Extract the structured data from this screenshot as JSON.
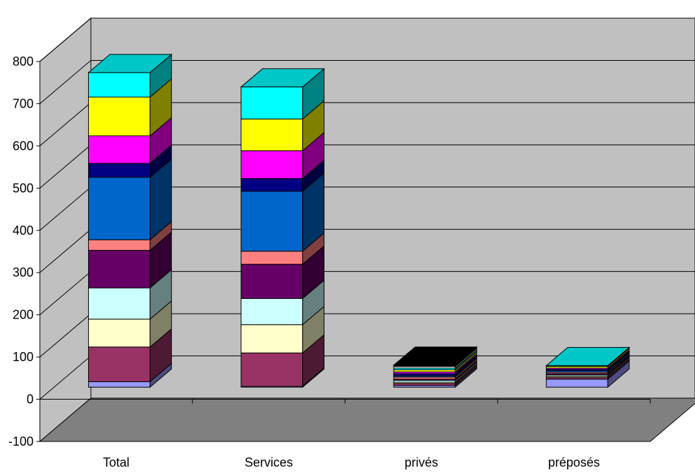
{
  "chart_data": {
    "type": "bar",
    "stacked": true,
    "three_d": true,
    "grid": true,
    "legend": "none",
    "title": "",
    "xlabel": "",
    "ylabel": "",
    "ylim": [
      -100,
      800
    ],
    "yticks": [
      -100,
      0,
      100,
      200,
      300,
      400,
      500,
      600,
      700,
      800
    ],
    "categories": [
      "Total",
      "Services",
      "privés",
      "préposés"
    ],
    "colors": {
      "wall": "#c0c0c0",
      "floor": "#808080",
      "gridline": "#000000"
    },
    "segments": [
      {
        "color": "#9999ff",
        "values": [
          13,
          2,
          4,
          19
        ]
      },
      {
        "color": "#993366",
        "values": [
          82,
          79,
          5,
          4
        ]
      },
      {
        "color": "#ffffcc",
        "values": [
          66,
          67,
          3,
          3
        ]
      },
      {
        "color": "#ccffff",
        "values": [
          74,
          62,
          4,
          3
        ]
      },
      {
        "color": "#660066",
        "values": [
          89,
          81,
          3,
          3
        ]
      },
      {
        "color": "#ff8080",
        "values": [
          25,
          31,
          5,
          3
        ]
      },
      {
        "color": "#0066cc",
        "values": [
          148,
          142,
          3,
          4
        ]
      },
      {
        "color": "#000080",
        "values": [
          33,
          30,
          5,
          3
        ]
      },
      {
        "color": "#ff00ff",
        "values": [
          65,
          66,
          4,
          3
        ]
      },
      {
        "color": "#ffff00",
        "values": [
          92,
          75,
          5,
          4
        ]
      },
      {
        "color": "#00ffff",
        "values": [
          58,
          76,
          4,
          2
        ]
      },
      {
        "color": "#ffffff",
        "values": [
          0,
          0,
          4,
          0
        ]
      },
      {
        "color": "#000000",
        "values": [
          0,
          0,
          3,
          0
        ]
      }
    ]
  }
}
